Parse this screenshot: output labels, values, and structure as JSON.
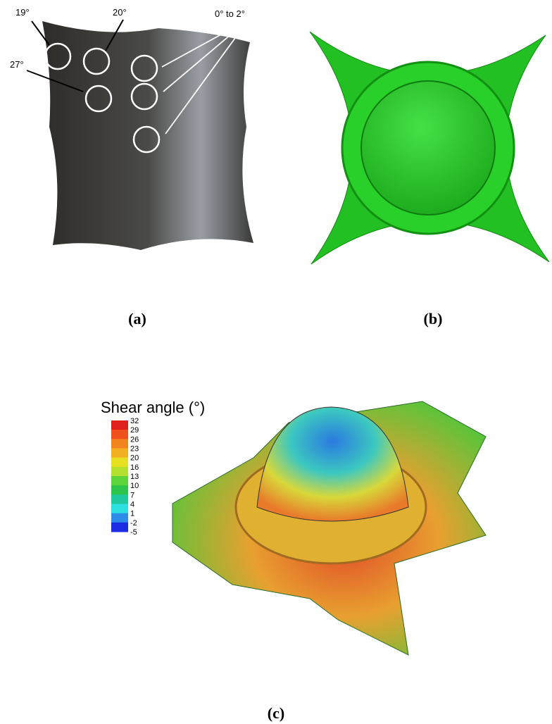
{
  "panel_a": {
    "annotations": [
      "19°",
      "20°",
      "27°",
      "0° to 2°"
    ],
    "caption": "(a)"
  },
  "panel_b": {
    "caption": "(b)"
  },
  "panel_c": {
    "colorbar": {
      "title": "Shear angle (°)",
      "labels": [
        32,
        29,
        26,
        23,
        20,
        16,
        13,
        10,
        7,
        4,
        1,
        -2,
        -5
      ],
      "colors": [
        "#e0201c",
        "#f0501c",
        "#f2841e",
        "#f0b020",
        "#e6e020",
        "#b4e030",
        "#5cd43a",
        "#2cc44a",
        "#20c8a0",
        "#2ce0e0",
        "#2c8ce8",
        "#1c2ce4"
      ]
    },
    "caption": "(c)"
  }
}
